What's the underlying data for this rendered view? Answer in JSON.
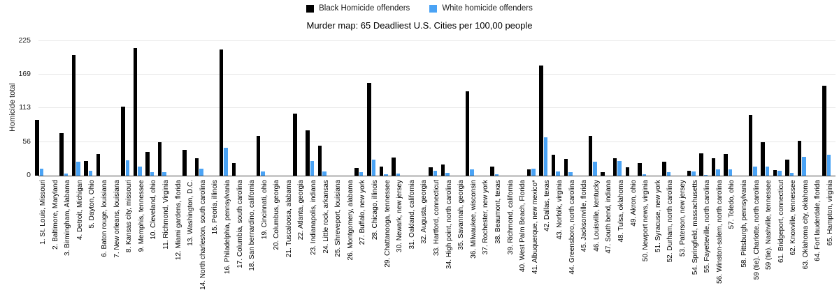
{
  "chart_data": {
    "type": "bar",
    "title": "Murder map: 65 Deadliest U.S. Cities per 100,00 people",
    "ylabel": "Homicide total",
    "ylim": [
      0,
      225
    ],
    "yticks": [
      0,
      56,
      113,
      169,
      225
    ],
    "grid": true,
    "legend_position": "top-center",
    "categories": [
      "1. St. Louis, Missouri",
      "2. Baltimore, Maryland",
      "3. Birmingham, Alabama",
      "4. Detroit, Michigan",
      "5. Dayton, Ohio",
      "6. Baton rouge, louisiana",
      "7. New orleans, louisiana",
      "8. Kansas city, missouri",
      "9. Memphis, tennessee",
      "10. Cleveland, ohio",
      "11. Richmond, Virginia",
      "12. Miami gardens, florida",
      "13. Washington, D.C.",
      "14. North charleston, south carolina",
      "15. Peoria, illinois",
      "16. Philadelphia, pennsylvania",
      "17. Columbia, south carolina",
      "18. San bernardino, california",
      "19. Cincinnati, ohio",
      "20. Columbus, georgia",
      "21. Tuscaloosa, alabama",
      "22. Atlanta, georgia",
      "23. Indianapolis, indiana",
      "24. Little rock, arkansas",
      "25. Shreveport, louisiana",
      "26. Montgomery, alabama",
      "27. Buffalo, new york",
      "28. Chicago, illinois",
      "29. Chattanooga, tennessee",
      "30. Newark, new jersey",
      "31. Oakland, california",
      "32. Augusta, georgia",
      "33. Hartford, connecticut",
      "34. High point, north carolina",
      "35. Savannah, georgia",
      "36. Milwaukee, wisconsin",
      "37. Rochester, new york",
      "38. Beaumont, texas",
      "39. Richmond, california",
      "40. West Palm Beach, Florida",
      "41. Albuquerque, new mexico*",
      "42. Dallas, texas",
      "43. Norfolk, virginia",
      "44. Greensboro, north carolina",
      "45. Jacksonville, florida",
      "46. Louisville, kentucky",
      "47. South bend, indiana",
      "48. Tulsa, oklahoma",
      "49. Akron, ohio",
      "50. Newport news, virginia",
      "51. Syracuse, new york",
      "52. Durham, north carolina",
      "53. Paterson, new jersey",
      "54. Springfield, massachusetts",
      "55. Fayetteville, north carolina",
      "56. Winston-salem, north carolina",
      "57. Toledo, ohio",
      "58. Pittsburgh, pennsylvania",
      "59 (tie). Charlotte, north carolina",
      "59 (tie). Nashville, tennessee",
      "61. Bridgeport, connecticut",
      "62. Knoxville, tennessee",
      "63. Oklahoma city, oklahoma",
      "64. Fort lauderdale, florida",
      "65. Hampton, virginia"
    ],
    "series": [
      {
        "name": "Black Homicide offenders",
        "color": "#000000",
        "values": [
          92,
          null,
          70,
          201,
          24,
          36,
          null,
          114,
          212,
          39,
          55,
          null,
          43,
          28,
          null,
          210,
          20,
          null,
          66,
          null,
          null,
          103,
          75,
          50,
          null,
          null,
          12,
          154,
          14,
          30,
          null,
          null,
          13,
          18,
          null,
          140,
          null,
          14,
          null,
          null,
          10,
          183,
          34,
          27,
          null,
          66,
          5,
          29,
          13,
          20,
          null,
          23,
          null,
          8,
          37,
          29,
          36,
          null,
          101,
          55,
          9,
          26,
          58,
          null,
          150
        ]
      },
      {
        "name": "White homicide offenders",
        "color": "#4aa3f5",
        "values": [
          11,
          null,
          3,
          23,
          8,
          0,
          null,
          25,
          15,
          5,
          5,
          null,
          0,
          11,
          null,
          46,
          0,
          null,
          6,
          null,
          null,
          0,
          24,
          6,
          null,
          null,
          5,
          26,
          2,
          3,
          null,
          null,
          7,
          4,
          null,
          10,
          null,
          2,
          null,
          null,
          11,
          63,
          6,
          5,
          null,
          23,
          0,
          24,
          0,
          2,
          null,
          5,
          null,
          6,
          1,
          10,
          10,
          null,
          14,
          14,
          8,
          4,
          31,
          null,
          34
        ]
      }
    ]
  }
}
